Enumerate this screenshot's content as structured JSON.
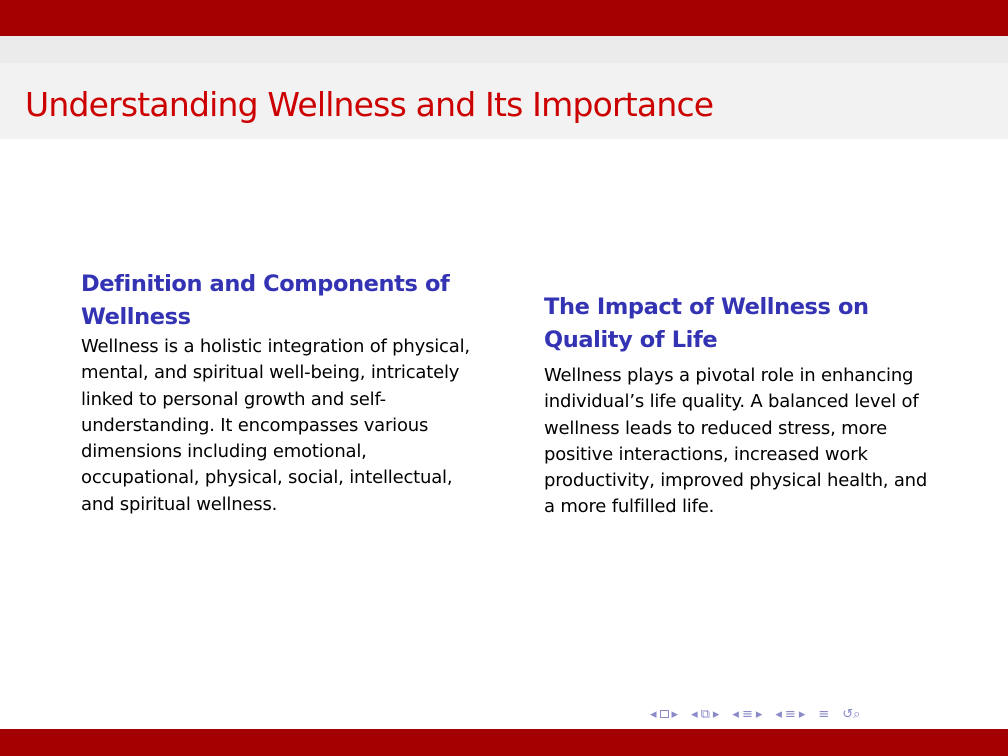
{
  "slide": {
    "title": "Understanding Wellness and Its Importance"
  },
  "left_block": {
    "title": "Definition and Components of Wellness",
    "body": "Wellness is a holistic integration of physical, mental, and spiritual well-being, intricately linked to personal growth and self-understanding. It encompasses various dimensions including emotional, occupational, physical, social, intellectual, and spiritual wellness."
  },
  "right_block": {
    "title": "The Impact of Wellness on Quality of Life",
    "body": "Wellness plays a pivotal role in enhancing individual’s life quality. A balanced level of wellness leads to reduced stress, more positive interactions, increased work productivity, improved physical health, and a more fulfilled life."
  },
  "navigation": {
    "icons": [
      "arrow-left-icon",
      "frame-icon",
      "arrow-right-icon",
      "subsection-icon",
      "section-icon",
      "align-icon",
      "search-icon"
    ]
  },
  "theme": {
    "bar_color": "#a50000",
    "title_color": "#cc0000",
    "block_title_color": "#3333b3",
    "nav_color": "#8a8ac8"
  }
}
